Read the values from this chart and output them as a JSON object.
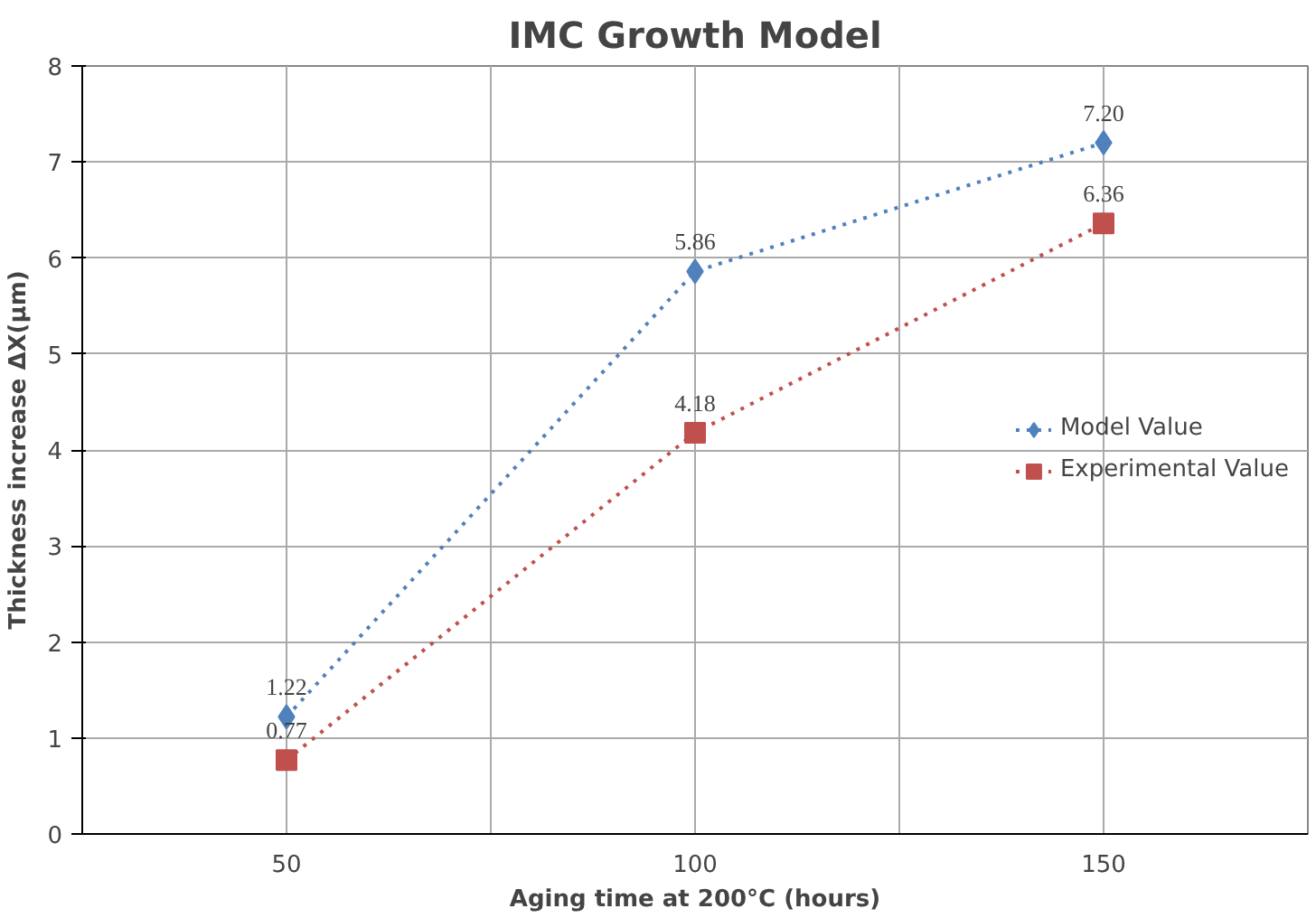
{
  "chart_data": {
    "type": "line",
    "title": "IMC Growth Model",
    "xlabel": "Aging time at 200°C (hours)",
    "ylabel": "Thickness increase ΔX(μm)",
    "x": [
      50,
      100,
      150
    ],
    "series": [
      {
        "name": "Model Value",
        "color": "#4f81bd",
        "marker": "diamond",
        "values": [
          1.22,
          5.86,
          7.2
        ],
        "value_labels": [
          "1.22",
          "5.86",
          "7.20"
        ]
      },
      {
        "name": "Experimental Value",
        "color": "#c0504d",
        "marker": "square",
        "values": [
          0.77,
          4.18,
          6.36
        ],
        "value_labels": [
          "0.77",
          "4.18",
          "6.36"
        ]
      }
    ],
    "xlim": [
      25,
      175
    ],
    "xticks": [
      {
        "value": 25,
        "label": null
      },
      50,
      {
        "value": 75,
        "label": null
      },
      100,
      {
        "value": 125,
        "label": null
      },
      150,
      {
        "value": 175,
        "label": null
      }
    ],
    "ylim": [
      0,
      8
    ],
    "yticks": [
      0,
      1,
      2,
      3,
      4,
      5,
      6,
      7,
      8
    ],
    "grid": true,
    "legend": "right",
    "line_style": "dotted"
  }
}
